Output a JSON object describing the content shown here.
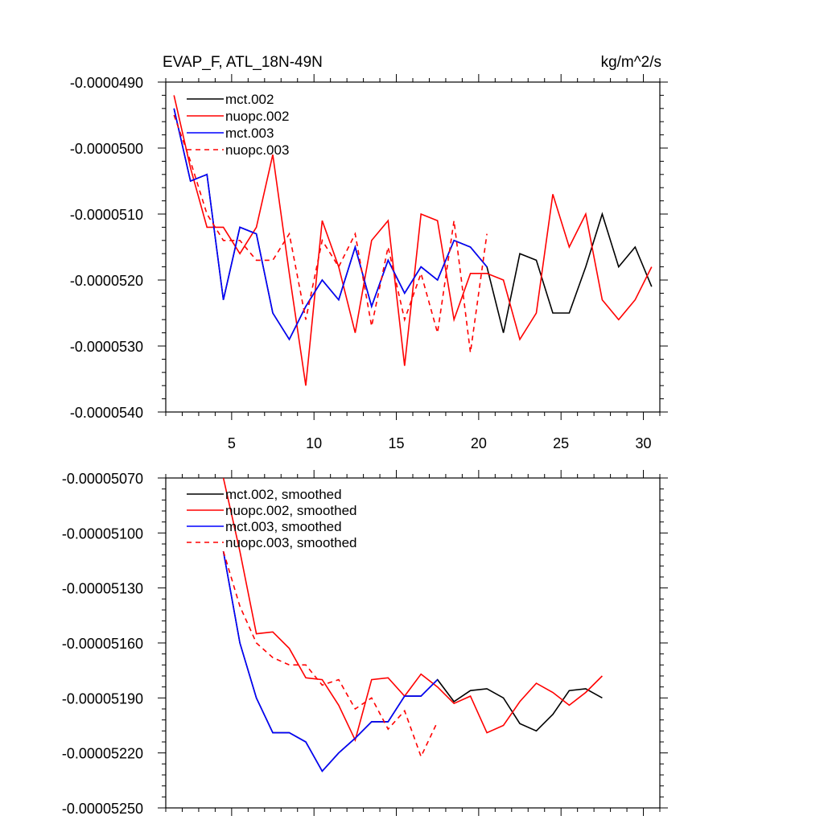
{
  "chart_data": [
    {
      "type": "line",
      "title": "EVAP_F, ATL_18N-49N",
      "units": "kg/m^2/s",
      "xlim": [
        1,
        31
      ],
      "ylim": [
        -5.4e-05,
        -4.9e-05
      ],
      "x_ticks": [
        5,
        10,
        15,
        20,
        25,
        30
      ],
      "y_ticks": [
        {
          "value": -4.9e-05,
          "label": "-0.0000490"
        },
        {
          "value": -5e-05,
          "label": "-0.0000500"
        },
        {
          "value": -5.1e-05,
          "label": "-0.0000510"
        },
        {
          "value": -5.2e-05,
          "label": "-0.0000520"
        },
        {
          "value": -5.3e-05,
          "label": "-0.0000530"
        },
        {
          "value": -5.4e-05,
          "label": "-0.0000540"
        }
      ],
      "legend_position": "top-left",
      "series": [
        {
          "name": "mct.002",
          "color": "#000000",
          "dash": "solid",
          "x": [
            1.5,
            2.5,
            3.5,
            4.5,
            5.5,
            6.5,
            7.5,
            8.5,
            9.5,
            10.5,
            11.5,
            12.5,
            13.5,
            14.5,
            15.5,
            16.5,
            17.5,
            18.5,
            19.5,
            20.5,
            21.5,
            22.5,
            23.5,
            24.5,
            25.5,
            26.5,
            27.5,
            28.5,
            29.5,
            30.5
          ],
          "values": [
            -4.94e-05,
            -5.05e-05,
            -5.04e-05,
            -5.23e-05,
            -5.12e-05,
            -5.13e-05,
            -5.25e-05,
            -5.29e-05,
            -5.24e-05,
            -5.2e-05,
            -5.23e-05,
            -5.15e-05,
            -5.24e-05,
            -5.17e-05,
            -5.22e-05,
            -5.18e-05,
            -5.2e-05,
            -5.14e-05,
            -5.15e-05,
            -5.18e-05,
            -5.28e-05,
            -5.16e-05,
            -5.17e-05,
            -5.25e-05,
            -5.25e-05,
            -5.18e-05,
            -5.1e-05,
            -5.18e-05,
            -5.15e-05,
            -5.21e-05
          ]
        },
        {
          "name": "nuopc.002",
          "color": "#ff0000",
          "dash": "solid",
          "x": [
            1.5,
            2.5,
            3.5,
            4.5,
            5.5,
            6.5,
            7.5,
            8.5,
            9.5,
            10.5,
            11.5,
            12.5,
            13.5,
            14.5,
            15.5,
            16.5,
            17.5,
            18.5,
            19.5,
            20.5,
            21.5,
            22.5,
            23.5,
            24.5,
            25.5,
            26.5,
            27.5,
            28.5,
            29.5,
            30.5
          ],
          "values": [
            -4.92e-05,
            -5.03e-05,
            -5.12e-05,
            -5.12e-05,
            -5.16e-05,
            -5.12e-05,
            -5.01e-05,
            -5.19e-05,
            -5.36e-05,
            -5.11e-05,
            -5.18e-05,
            -5.28e-05,
            -5.14e-05,
            -5.11e-05,
            -5.33e-05,
            -5.1e-05,
            -5.11e-05,
            -5.26e-05,
            -5.19e-05,
            -5.19e-05,
            -5.2e-05,
            -5.29e-05,
            -5.25e-05,
            -5.07e-05,
            -5.15e-05,
            -5.1e-05,
            -5.23e-05,
            -5.26e-05,
            -5.23e-05,
            -5.18e-05
          ]
        },
        {
          "name": "mct.003",
          "color": "#0000ff",
          "dash": "solid",
          "x": [
            1.5,
            2.5,
            3.5,
            4.5,
            5.5,
            6.5,
            7.5,
            8.5,
            9.5,
            10.5,
            11.5,
            12.5,
            13.5,
            14.5,
            15.5,
            16.5,
            17.5,
            18.5,
            19.5,
            20.5
          ],
          "values": [
            -4.94e-05,
            -5.05e-05,
            -5.04e-05,
            -5.23e-05,
            -5.12e-05,
            -5.13e-05,
            -5.25e-05,
            -5.29e-05,
            -5.24e-05,
            -5.2e-05,
            -5.23e-05,
            -5.15e-05,
            -5.24e-05,
            -5.17e-05,
            -5.22e-05,
            -5.18e-05,
            -5.2e-05,
            -5.14e-05,
            -5.15e-05,
            -5.18e-05
          ]
        },
        {
          "name": "nuopc.003",
          "color": "#ff0000",
          "dash": "dashed",
          "x": [
            1.5,
            2.5,
            3.5,
            4.5,
            5.5,
            6.5,
            7.5,
            8.5,
            9.5,
            10.5,
            11.5,
            12.5,
            13.5,
            14.5,
            15.5,
            16.5,
            17.5,
            18.5,
            19.5,
            20.5
          ],
          "values": [
            -4.95e-05,
            -5.02e-05,
            -5.1e-05,
            -5.14e-05,
            -5.14e-05,
            -5.17e-05,
            -5.17e-05,
            -5.13e-05,
            -5.26e-05,
            -5.14e-05,
            -5.18e-05,
            -5.13e-05,
            -5.27e-05,
            -5.15e-05,
            -5.26e-05,
            -5.19e-05,
            -5.28e-05,
            -5.11e-05,
            -5.31e-05,
            -5.13e-05
          ]
        }
      ]
    },
    {
      "type": "line",
      "title": "",
      "xlim": [
        1,
        31
      ],
      "ylim": [
        -5.25e-05,
        -5.07e-05
      ],
      "x_ticks": [
        5,
        10,
        15,
        20,
        25,
        30
      ],
      "y_ticks": [
        {
          "value": -5.07e-05,
          "label": "-0.00005070"
        },
        {
          "value": -5.1e-05,
          "label": "-0.00005100"
        },
        {
          "value": -5.13e-05,
          "label": "-0.00005130"
        },
        {
          "value": -5.16e-05,
          "label": "-0.00005160"
        },
        {
          "value": -5.19e-05,
          "label": "-0.00005190"
        },
        {
          "value": -5.22e-05,
          "label": "-0.00005220"
        },
        {
          "value": -5.25e-05,
          "label": "-0.00005250"
        }
      ],
      "legend_position": "top-left",
      "series": [
        {
          "name": "mct.002, smoothed",
          "color": "#000000",
          "dash": "solid",
          "x": [
            4.5,
            5.5,
            6.5,
            7.5,
            8.5,
            9.5,
            10.5,
            11.5,
            12.5,
            13.5,
            14.5,
            15.5,
            16.5,
            17.5,
            18.5,
            19.5,
            20.5,
            21.5,
            22.5,
            23.5,
            24.5,
            25.5,
            26.5,
            27.5
          ],
          "values": [
            -5.11e-05,
            -5.16e-05,
            -5.19e-05,
            -5.209e-05,
            -5.209e-05,
            -5.214e-05,
            -5.23e-05,
            -5.22e-05,
            -5.212e-05,
            -5.203e-05,
            -5.203e-05,
            -5.189e-05,
            -5.189e-05,
            -5.18e-05,
            -5.192e-05,
            -5.186e-05,
            -5.185e-05,
            -5.19e-05,
            -5.204e-05,
            -5.208e-05,
            -5.199e-05,
            -5.186e-05,
            -5.185e-05,
            -5.19e-05
          ]
        },
        {
          "name": "nuopc.002, smoothed",
          "color": "#ff0000",
          "dash": "solid",
          "x": [
            4.5,
            5.5,
            6.5,
            7.5,
            8.5,
            9.5,
            10.5,
            11.5,
            12.5,
            13.5,
            14.5,
            15.5,
            16.5,
            17.5,
            18.5,
            19.5,
            20.5,
            21.5,
            22.5,
            23.5,
            24.5,
            25.5,
            26.5,
            27.5
          ],
          "values": [
            -5.07e-05,
            -5.11e-05,
            -5.155e-05,
            -5.154e-05,
            -5.163e-05,
            -5.179e-05,
            -5.18e-05,
            -5.194e-05,
            -5.213e-05,
            -5.18e-05,
            -5.179e-05,
            -5.189e-05,
            -5.177e-05,
            -5.184e-05,
            -5.193e-05,
            -5.189e-05,
            -5.209e-05,
            -5.205e-05,
            -5.192e-05,
            -5.182e-05,
            -5.187e-05,
            -5.194e-05,
            -5.187e-05,
            -5.178e-05
          ]
        },
        {
          "name": "mct.003, smoothed",
          "color": "#0000ff",
          "dash": "solid",
          "x": [
            4.5,
            5.5,
            6.5,
            7.5,
            8.5,
            9.5,
            10.5,
            11.5,
            12.5,
            13.5,
            14.5,
            15.5,
            16.5,
            17.5
          ],
          "values": [
            -5.11e-05,
            -5.16e-05,
            -5.19e-05,
            -5.209e-05,
            -5.209e-05,
            -5.214e-05,
            -5.23e-05,
            -5.22e-05,
            -5.212e-05,
            -5.203e-05,
            -5.203e-05,
            -5.189e-05,
            -5.189e-05,
            -5.18e-05
          ]
        },
        {
          "name": "nuopc.003, smoothed",
          "color": "#ff0000",
          "dash": "dashed",
          "x": [
            4.5,
            5.5,
            6.5,
            7.5,
            8.5,
            9.5,
            10.5,
            11.5,
            12.5,
            13.5,
            14.5,
            15.5,
            16.5,
            17.5
          ],
          "values": [
            -5.11e-05,
            -5.14e-05,
            -5.16e-05,
            -5.168e-05,
            -5.172e-05,
            -5.172e-05,
            -5.183e-05,
            -5.18e-05,
            -5.196e-05,
            -5.19e-05,
            -5.207e-05,
            -5.197e-05,
            -5.222e-05,
            -5.203e-05
          ]
        }
      ]
    }
  ]
}
